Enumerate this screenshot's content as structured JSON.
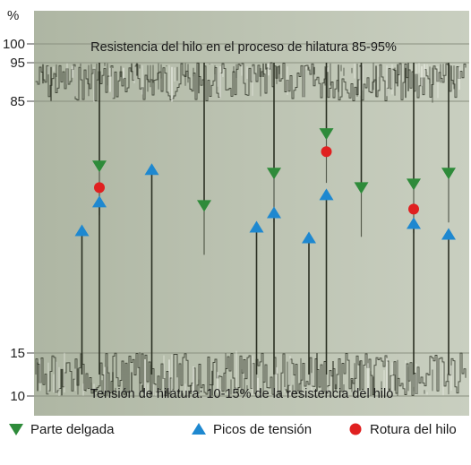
{
  "chart_data": {
    "type": "scatter",
    "title": "",
    "ylabel": "%",
    "ylim": [
      10,
      100
    ],
    "yticks": [
      "100",
      "95",
      "85",
      "15",
      "10"
    ],
    "annotations": {
      "top": "Resistencia del hilo en el proceso de hilatura 85-95%",
      "bottom": "Tensión de hilatura: 10-15% de la resistencia del hilo"
    },
    "bands": {
      "strength": [
        85,
        95
      ],
      "tension": [
        10,
        15
      ]
    },
    "series": [
      {
        "name": "Parte delgada",
        "marker": "triangle-down",
        "color": "#2e8b3a",
        "points": [
          {
            "x": 2,
            "y": 67
          },
          {
            "x": 8,
            "y": 56
          },
          {
            "x": 12,
            "y": 65
          },
          {
            "x": 15,
            "y": 76
          },
          {
            "x": 17,
            "y": 61
          },
          {
            "x": 20,
            "y": 62
          },
          {
            "x": 22,
            "y": 65
          }
        ]
      },
      {
        "name": "Picos de tensión",
        "marker": "triangle-up",
        "color": "#1e88d0",
        "points": [
          {
            "x": 1,
            "y": 49
          },
          {
            "x": 2,
            "y": 57
          },
          {
            "x": 5,
            "y": 66
          },
          {
            "x": 11,
            "y": 50
          },
          {
            "x": 12,
            "y": 54
          },
          {
            "x": 14,
            "y": 47
          },
          {
            "x": 15,
            "y": 59
          },
          {
            "x": 20,
            "y": 51
          },
          {
            "x": 22,
            "y": 48
          }
        ]
      },
      {
        "name": "Rotura del hilo",
        "marker": "circle",
        "color": "#e02020",
        "points": [
          {
            "x": 2,
            "y": 61
          },
          {
            "x": 15,
            "y": 71
          },
          {
            "x": 20,
            "y": 55
          }
        ]
      }
    ],
    "legend": [
      {
        "label": "Parte delgada",
        "marker": "triangle-down",
        "color": "#2e8b3a"
      },
      {
        "label": "Picos de tensión",
        "marker": "triangle-up",
        "color": "#1e88d0"
      },
      {
        "label": "Rotura del hilo",
        "marker": "circle",
        "color": "#e02020"
      }
    ],
    "colors": {
      "plot_background": "#b8bfae",
      "frame": "#8f9685",
      "signal_dark": "#2a2f22",
      "signal_light": "#eef0e8",
      "gridline": "#8a9080"
    },
    "legend_placement": "bottom",
    "grid": true
  }
}
